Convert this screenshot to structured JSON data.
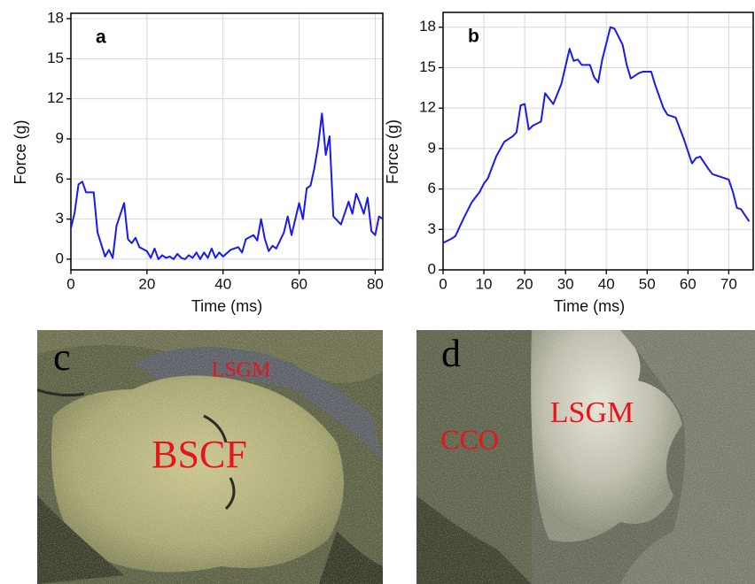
{
  "chart_data": [
    {
      "type": "line",
      "title": "a",
      "x_label": "Time (ms)",
      "y_label": "Force (g)",
      "color": "#1a1aee",
      "grid": true,
      "xlim": [
        0,
        82
      ],
      "ylim": [
        -0.8,
        18.4
      ],
      "xticks": [
        0,
        20,
        40,
        60,
        80
      ],
      "yticks": [
        0,
        3,
        6,
        9,
        12,
        15,
        18
      ],
      "x": [
        0,
        1,
        2,
        3,
        4,
        6,
        7,
        9,
        10,
        11,
        12,
        14,
        15,
        16,
        17,
        18,
        20,
        21,
        22,
        23,
        24,
        25,
        26,
        27,
        28,
        29,
        30,
        31,
        32,
        33,
        34,
        35,
        36,
        37,
        38,
        39,
        40,
        42,
        44,
        45,
        46,
        48,
        49,
        50,
        51,
        52,
        53,
        54,
        56,
        57,
        58,
        60,
        61,
        62,
        63,
        64,
        65,
        66,
        67,
        68,
        69,
        71,
        73,
        74,
        75,
        76,
        77,
        78,
        79,
        80,
        81,
        82
      ],
      "values": [
        2.3,
        3.5,
        5.6,
        5.8,
        5.0,
        5.0,
        2.0,
        0.2,
        0.7,
        0.1,
        2.5,
        4.2,
        1.5,
        1.2,
        1.6,
        0.9,
        0.6,
        0.1,
        0.8,
        0.0,
        0.3,
        0.1,
        0.2,
        0.0,
        0.4,
        0.1,
        0.0,
        0.3,
        0.1,
        0.5,
        0.0,
        0.5,
        0.1,
        0.8,
        0.1,
        0.5,
        0.2,
        0.7,
        0.9,
        0.5,
        1.5,
        1.8,
        1.4,
        3.0,
        1.5,
        0.6,
        1.0,
        0.8,
        2.0,
        3.2,
        1.8,
        4.2,
        3.0,
        5.3,
        5.5,
        6.8,
        8.5,
        10.9,
        7.8,
        9.2,
        3.2,
        2.6,
        4.3,
        3.4,
        4.9,
        4.2,
        3.4,
        4.6,
        2.1,
        1.8,
        3.2,
        3.0
      ]
    },
    {
      "type": "line",
      "title": "b",
      "x_label": "Time (ms)",
      "y_label": "Force (g)",
      "color": "#1a1aee",
      "grid": true,
      "xlim": [
        0,
        76
      ],
      "ylim": [
        0,
        19.1
      ],
      "xticks": [
        0,
        10,
        20,
        30,
        40,
        50,
        60,
        70
      ],
      "yticks": [
        0,
        3,
        6,
        9,
        12,
        15,
        18
      ],
      "x": [
        0,
        2,
        3,
        5,
        7,
        9,
        10,
        11,
        13,
        15,
        17,
        18,
        19,
        20,
        21,
        22,
        24,
        25,
        27,
        29,
        31,
        32,
        33,
        34,
        36,
        37,
        38,
        39,
        41,
        42,
        44,
        45,
        46,
        48,
        49,
        51,
        52,
        54,
        55,
        57,
        59,
        61,
        62,
        63,
        65,
        66,
        70,
        71,
        72,
        73,
        75
      ],
      "values": [
        2.0,
        2.3,
        2.5,
        3.8,
        5.0,
        5.8,
        6.4,
        6.8,
        8.4,
        9.5,
        9.9,
        10.2,
        12.2,
        12.3,
        10.4,
        10.7,
        11.0,
        13.1,
        12.3,
        13.8,
        16.4,
        15.5,
        15.6,
        15.2,
        15.2,
        14.3,
        13.9,
        15.6,
        18.0,
        17.9,
        16.7,
        15.2,
        14.2,
        14.6,
        14.7,
        14.7,
        13.7,
        12.0,
        11.5,
        11.3,
        9.7,
        7.9,
        8.3,
        8.4,
        7.5,
        7.1,
        6.7,
        5.8,
        4.6,
        4.5,
        3.6
      ]
    }
  ],
  "images": [
    {
      "letter": "c",
      "labels": [
        "LSGM",
        "BSCF"
      ]
    },
    {
      "letter": "d",
      "labels": [
        "CCO",
        "LSGM"
      ]
    }
  ]
}
